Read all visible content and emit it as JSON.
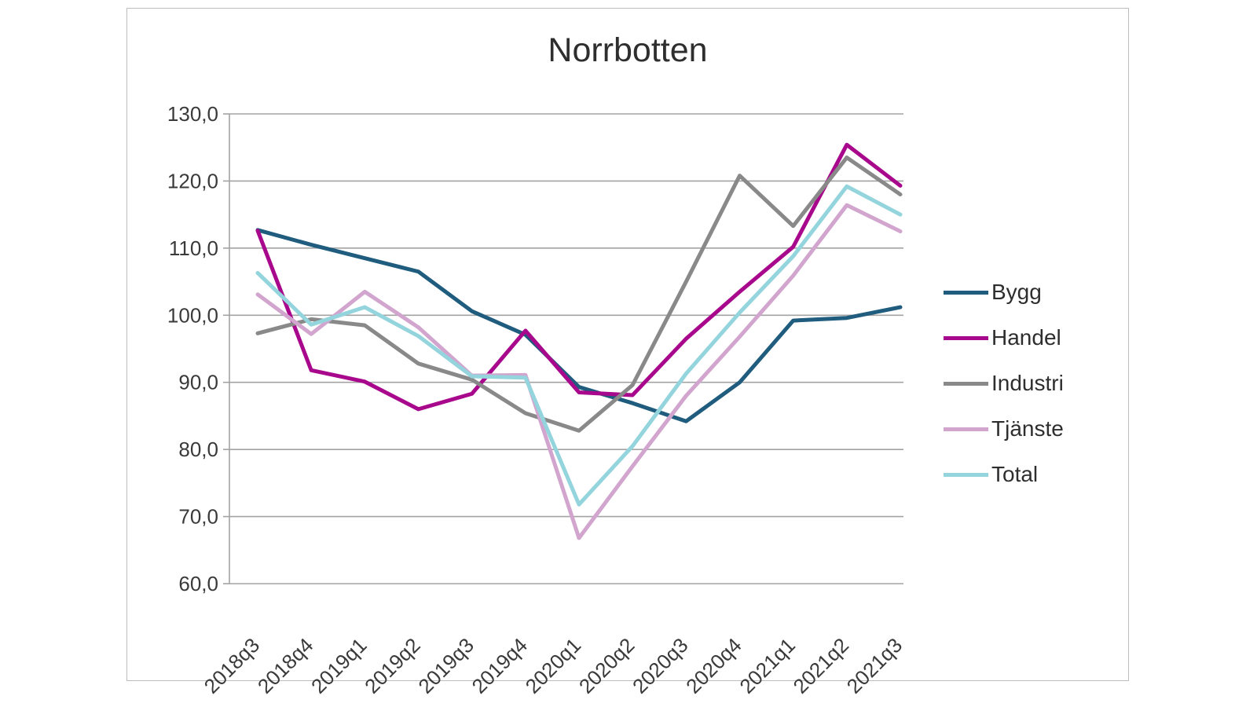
{
  "title": "Norrbotten",
  "chart_data": {
    "type": "line",
    "title": "Norrbotten",
    "categories": [
      "2018q3",
      "2018q4",
      "2019q1",
      "2019q2",
      "2019q3",
      "2019q4",
      "2020q1",
      "2020q2",
      "2020q3",
      "2020q4",
      "2021q1",
      "2021q2",
      "2021q3"
    ],
    "series": [
      {
        "name": "Bygg",
        "color": "#1f5c7e",
        "values": [
          112.7,
          110.5,
          108.5,
          106.5,
          100.6,
          97.1,
          89.3,
          86.9,
          84.2,
          90.0,
          99.2,
          99.6,
          101.2
        ]
      },
      {
        "name": "Handel",
        "color": "#a8088c",
        "values": [
          112.6,
          91.8,
          90.1,
          86.0,
          88.3,
          97.7,
          88.5,
          88.1,
          96.5,
          103.5,
          110.2,
          125.4,
          119.3
        ]
      },
      {
        "name": "Industri",
        "color": "#898989",
        "values": [
          97.3,
          99.4,
          98.5,
          92.8,
          90.4,
          85.4,
          82.8,
          89.6,
          105.0,
          120.8,
          113.3,
          123.5,
          118.0
        ]
      },
      {
        "name": "Tjänste",
        "color": "#d2a5ce",
        "values": [
          103.1,
          97.2,
          103.5,
          98.2,
          91.0,
          91.1,
          66.8,
          77.5,
          88.0,
          96.8,
          105.9,
          116.4,
          112.5
        ]
      },
      {
        "name": "Total",
        "color": "#93d4dd",
        "values": [
          106.3,
          98.6,
          101.2,
          96.9,
          90.9,
          90.7,
          71.8,
          80.5,
          91.3,
          100.4,
          108.8,
          119.2,
          115.0
        ]
      }
    ],
    "ylim": [
      60,
      130
    ],
    "ytick_step": 10,
    "ytick_labels": [
      "60,0",
      "70,0",
      "80,0",
      "90,0",
      "100,0",
      "110,0",
      "120,0",
      "130,0"
    ],
    "grid": true,
    "legend_position": "right",
    "colors": {
      "gridline": "#a3a3a3",
      "axis": "#a3a3a3",
      "tick_text": "#3a3a3a",
      "panel_border": "#bdbdbd"
    }
  }
}
